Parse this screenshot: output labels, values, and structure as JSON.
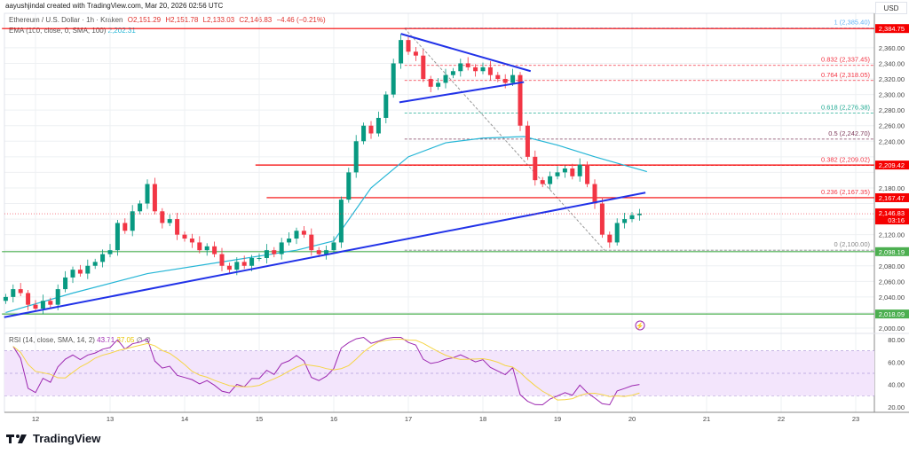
{
  "header": {
    "credit": "aayushjindal created with TradingView.com, Mar 20, 2026 02:56 UTC",
    "symbol": "Ethereum / U.S. Dollar · 1h · Kraken",
    "open": "O2,151.29",
    "high": "H2,151.78",
    "low": "L2,133.03",
    "close": "C2,146.83",
    "change": "−4.46 (−0.21%)",
    "ema_label": "EMA (100, close, 0, SMA, 100)",
    "ema_value": "2,202.31"
  },
  "currency": "USD",
  "logo": "TradingView",
  "rsi_legend": {
    "label": "RSI (14, close, SMA, 14, 2)",
    "rsi": "43.71",
    "sma": "37.05",
    "extra": "∅ ∅"
  },
  "colors": {
    "up": "#089981",
    "down": "#f23645",
    "ema": "#26b6d6",
    "trend": "#2132e8",
    "red_level": "#f50000",
    "green_level": "#4caf50",
    "rsi": "#9c27b0",
    "rsi_ma": "#f5d547",
    "rsi_band": "#f3e5fc"
  },
  "chart_data": [
    {
      "type": "candlestick",
      "interval": "1h",
      "x_ticks": [
        "12",
        "13",
        "14",
        "15",
        "16",
        "17",
        "18",
        "19",
        "20",
        "21",
        "22",
        "23"
      ],
      "y_ticks": [
        "2,000.00",
        "2,020.00",
        "2,040.00",
        "2,060.00",
        "2,080.00",
        "2,100.00",
        "2,120.00",
        "2,140.00",
        "2,160.00",
        "2,180.00",
        "2,200.00",
        "2,220.00",
        "2,240.00",
        "2,260.00",
        "2,280.00",
        "2,300.00",
        "2,320.00",
        "2,340.00",
        "2,360.00"
      ],
      "ylim": [
        1990,
        2400
      ],
      "xlim_day": [
        11.55,
        23.3
      ],
      "close_series": {
        "start_day": 11.6,
        "step_day": 0.1,
        "values": [
          2040,
          2050,
          2045,
          2030,
          2025,
          2035,
          2030,
          2050,
          2065,
          2075,
          2070,
          2080,
          2085,
          2095,
          2100,
          2135,
          2125,
          2150,
          2160,
          2185,
          2150,
          2135,
          2140,
          2120,
          2115,
          2110,
          2100,
          2105,
          2095,
          2080,
          2075,
          2085,
          2080,
          2090,
          2090,
          2100,
          2095,
          2110,
          2115,
          2125,
          2120,
          2100,
          2095,
          2100,
          2110,
          2165,
          2200,
          2240,
          2260,
          2250,
          2270,
          2300,
          2340,
          2370,
          2355,
          2350,
          2320,
          2310,
          2315,
          2325,
          2330,
          2340,
          2335,
          2330,
          2335,
          2325,
          2320,
          2315,
          2325,
          2260,
          2220,
          2190,
          2185,
          2195,
          2200,
          2205,
          2195,
          2210,
          2185,
          2160,
          2120,
          2110,
          2135,
          2140,
          2145,
          2147
        ]
      },
      "ema": [
        [
          11.6,
          2020
        ],
        [
          12.5,
          2045
        ],
        [
          13.5,
          2070
        ],
        [
          14.5,
          2085
        ],
        [
          15.5,
          2100
        ],
        [
          16.0,
          2112
        ],
        [
          16.5,
          2180
        ],
        [
          17.0,
          2220
        ],
        [
          17.5,
          2238
        ],
        [
          18.0,
          2244
        ],
        [
          18.55,
          2246
        ],
        [
          19.0,
          2235
        ],
        [
          19.5,
          2220
        ],
        [
          20.2,
          2201
        ]
      ],
      "trendlines": [
        [
          [
            11.58,
            2014
          ],
          [
            20.18,
            2174
          ]
        ],
        [
          [
            16.9,
            2378
          ],
          [
            18.64,
            2330
          ]
        ],
        [
          [
            16.88,
            2290
          ],
          [
            18.55,
            2316
          ]
        ]
      ],
      "horizontal_levels": [
        {
          "price": 2384.75,
          "label": "2,384.75",
          "color": "red",
          "from_day": 11.55
        },
        {
          "price": 2209.42,
          "label": "2,209.42",
          "color": "red",
          "from_day": 14.95
        },
        {
          "price": 2167.47,
          "label": "2,167.47",
          "color": "red",
          "from_day": 15.1
        },
        {
          "price": 2098.19,
          "label": "2,098.19",
          "color": "green",
          "from_day": 11.55
        },
        {
          "price": 2018.09,
          "label": "2,018.09",
          "color": "green",
          "from_day": 11.55
        }
      ],
      "fib_levels": [
        {
          "ratio": "1",
          "price": 2385.4,
          "label": "1 (2,385.40)",
          "color": "#64b5f6"
        },
        {
          "ratio": "0.832",
          "price": 2337.45,
          "label": "0.832 (2,337.45)",
          "color": "#f23645"
        },
        {
          "ratio": "0.764",
          "price": 2318.05,
          "label": "0.764 (2,318.05)",
          "color": "#f23645"
        },
        {
          "ratio": "0.618",
          "price": 2276.38,
          "label": "0.618 (2,276.38)",
          "color": "#22ab94"
        },
        {
          "ratio": "0.5",
          "price": 2242.7,
          "label": "0.5 (2,242.70)",
          "color": "#7e3b5b"
        },
        {
          "ratio": "0.382",
          "price": 2209.02,
          "label": "0.382 (2,209.02)",
          "color": "#f23645"
        },
        {
          "ratio": "0.236",
          "price": 2167.35,
          "label": "0.236 (2,167.35)",
          "color": "#f23645"
        },
        {
          "ratio": "0",
          "price": 2100.0,
          "label": "0 (2,100.00)",
          "color": "#888888"
        }
      ],
      "fib_from_day": 16.95,
      "last_price": {
        "label": "2,146.83",
        "countdown": "03:16"
      },
      "rsi": {
        "ylim": [
          15,
          85
        ],
        "y_ticks": [
          "20.00",
          "40.00",
          "60.00",
          "80.00"
        ],
        "band": [
          30,
          70
        ],
        "mid": 50
      }
    }
  ]
}
